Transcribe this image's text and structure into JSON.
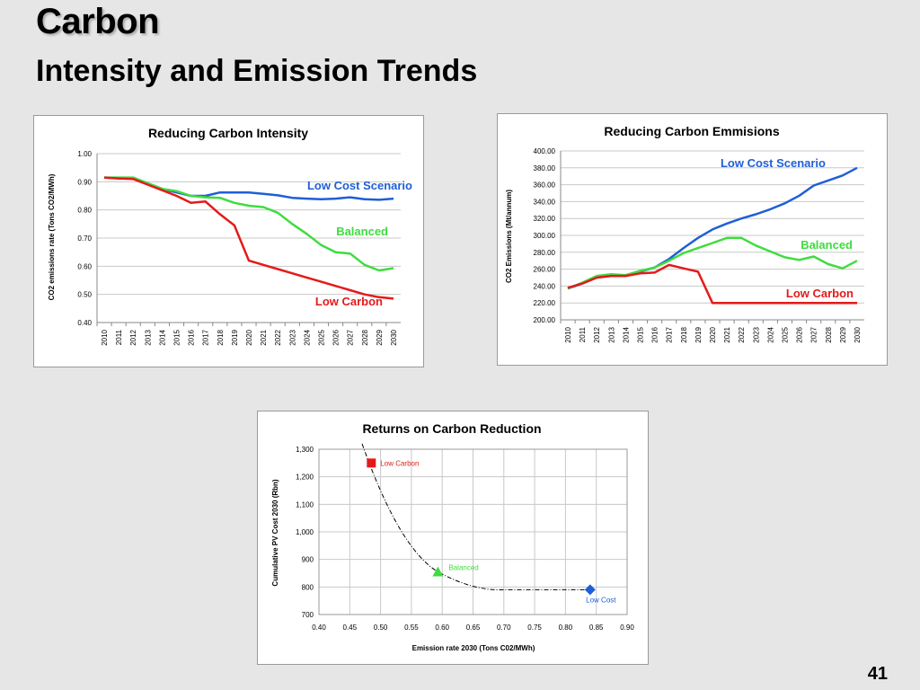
{
  "slide": {
    "title": "Carbon",
    "subtitle": "Intensity and Emission Trends",
    "page_number": "41"
  },
  "colors": {
    "low_cost": "#1f5fd6",
    "balanced": "#3fdc3f",
    "low_carbon": "#e41a1a",
    "grid": "#c8c8c8"
  },
  "chart_data": [
    {
      "type": "line",
      "title": "Reducing Carbon Intensity",
      "xlabel": "",
      "ylabel": "CO2 emissions rate (Tons CO2/MWh)",
      "ylim": [
        0.4,
        1.0
      ],
      "yticks": [
        "0.40",
        "0.50",
        "0.60",
        "0.70",
        "0.80",
        "0.90",
        "1.00"
      ],
      "x": [
        "2010",
        "2011",
        "2012",
        "2013",
        "2014",
        "2015",
        "2016",
        "2017",
        "2018",
        "2019",
        "2020",
        "2021",
        "2022",
        "2023",
        "2024",
        "2025",
        "2026",
        "2027",
        "2028",
        "2029",
        "2030"
      ],
      "grid": "horizontal",
      "series": [
        {
          "name": "Low Cost Scenario",
          "color": "#1f5fd6",
          "values": [
            0.915,
            0.912,
            0.912,
            0.895,
            0.875,
            0.862,
            0.85,
            0.85,
            0.862,
            0.862,
            0.862,
            0.857,
            0.852,
            0.843,
            0.84,
            0.838,
            0.84,
            0.845,
            0.838,
            0.836,
            0.84
          ]
        },
        {
          "name": "Balanced",
          "color": "#3fdc3f",
          "values": [
            0.915,
            0.915,
            0.915,
            0.895,
            0.875,
            0.867,
            0.85,
            0.845,
            0.843,
            0.825,
            0.815,
            0.81,
            0.79,
            0.75,
            0.715,
            0.675,
            0.65,
            0.645,
            0.605,
            0.585,
            0.593
          ]
        },
        {
          "name": "Low Carbon",
          "color": "#e41a1a",
          "values": [
            0.915,
            0.912,
            0.91,
            0.89,
            0.87,
            0.85,
            0.825,
            0.83,
            0.785,
            0.745,
            0.62,
            0.605,
            0.59,
            0.575,
            0.56,
            0.545,
            0.53,
            0.515,
            0.5,
            0.49,
            0.485
          ]
        }
      ]
    },
    {
      "type": "line",
      "title": "Reducing Carbon Emmisions",
      "xlabel": "",
      "ylabel": "CO2 Emissions (Mt/annum)",
      "ylim": [
        200,
        400
      ],
      "yticks": [
        "200.00",
        "220.00",
        "240.00",
        "260.00",
        "280.00",
        "300.00",
        "320.00",
        "340.00",
        "360.00",
        "380.00",
        "400.00"
      ],
      "x": [
        "2010",
        "2011",
        "2012",
        "2013",
        "2014",
        "2015",
        "2016",
        "2017",
        "2018",
        "2019",
        "2020",
        "2021",
        "2022",
        "2023",
        "2024",
        "2025",
        "2026",
        "2027",
        "2028",
        "2029",
        "2030"
      ],
      "grid": "horizontal",
      "series": [
        {
          "name": "Low Cost Scenario",
          "color": "#1f5fd6",
          "values": [
            237,
            243,
            250,
            252,
            252,
            257,
            262,
            272,
            285,
            297,
            307,
            314,
            320,
            325,
            331,
            338,
            347,
            359,
            365,
            371,
            380
          ]
        },
        {
          "name": "Balanced",
          "color": "#3fdc3f",
          "values": [
            237,
            244,
            252,
            254,
            253,
            258,
            262,
            270,
            279,
            285,
            291,
            297,
            297,
            288,
            281,
            274,
            271,
            275,
            266,
            261,
            270
          ]
        },
        {
          "name": "Low Carbon",
          "color": "#e41a1a",
          "values": [
            238,
            243,
            250,
            252,
            252,
            255,
            256,
            265,
            261,
            257,
            220,
            220,
            220,
            220,
            220,
            220,
            220,
            220,
            220,
            220,
            220
          ]
        }
      ]
    },
    {
      "type": "scatter",
      "title": "Returns on Carbon Reduction",
      "xlabel": "Emission rate 2030 (Tons C02/MWh)",
      "ylabel": "Cumulative PV Cost 2030 (Rbn)",
      "xlim": [
        0.4,
        0.9
      ],
      "ylim": [
        700,
        1300
      ],
      "xticks": [
        "0.40",
        "0.45",
        "0.50",
        "0.55",
        "0.60",
        "0.65",
        "0.70",
        "0.75",
        "0.80",
        "0.85",
        "0.90"
      ],
      "yticks": [
        "700",
        "800",
        "900",
        "1,000",
        "1,100",
        "1,200",
        "1,300"
      ],
      "grid": "both",
      "points": [
        {
          "label": "Low Carbon",
          "x": 0.485,
          "y": 1250,
          "marker": "square",
          "color": "#e41a1a"
        },
        {
          "label": "Balanced",
          "x": 0.593,
          "y": 855,
          "marker": "triangle",
          "color": "#3fdc3f"
        },
        {
          "label": "Low Cost",
          "x": 0.84,
          "y": 790,
          "marker": "diamond",
          "color": "#1f5fd6"
        }
      ]
    }
  ]
}
